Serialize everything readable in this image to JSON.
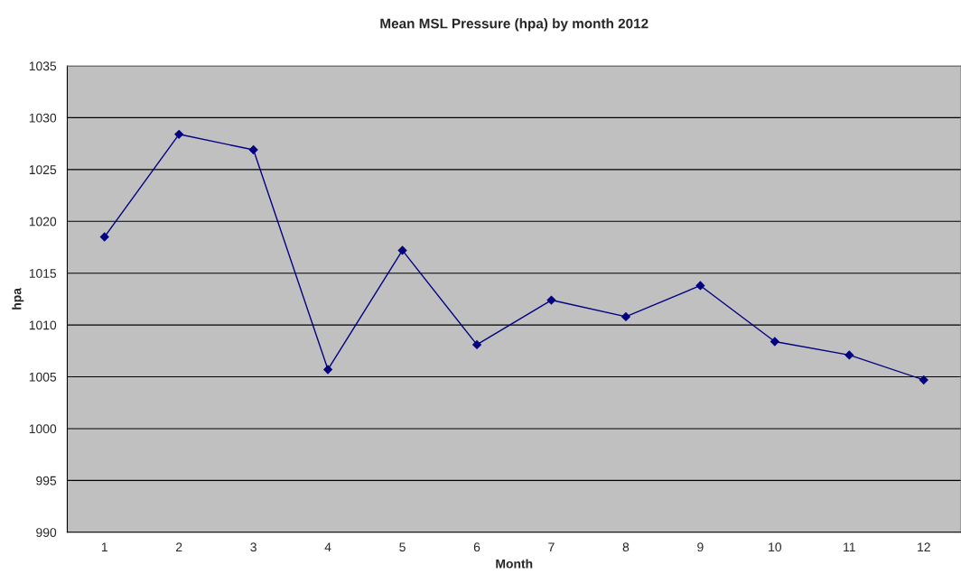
{
  "chart_data": {
    "type": "line",
    "title": "Mean MSL Pressure (hpa) by month 2012",
    "xlabel": "Month",
    "ylabel": "hpa",
    "categories": [
      "1",
      "2",
      "3",
      "4",
      "5",
      "6",
      "7",
      "8",
      "9",
      "10",
      "11",
      "12"
    ],
    "series": [
      {
        "color": "#000080",
        "values": [
          1018.5,
          1028.4,
          1026.9,
          1005.7,
          1017.2,
          1008.1,
          1012.4,
          1010.8,
          1013.8,
          1008.4,
          1007.1,
          1004.7
        ]
      }
    ],
    "ylim": [
      990,
      1035
    ],
    "yticks": [
      990,
      995,
      1000,
      1005,
      1010,
      1015,
      1020,
      1025,
      1030,
      1035
    ],
    "grid": "y",
    "marker": "diamond",
    "line_style": "solid"
  }
}
